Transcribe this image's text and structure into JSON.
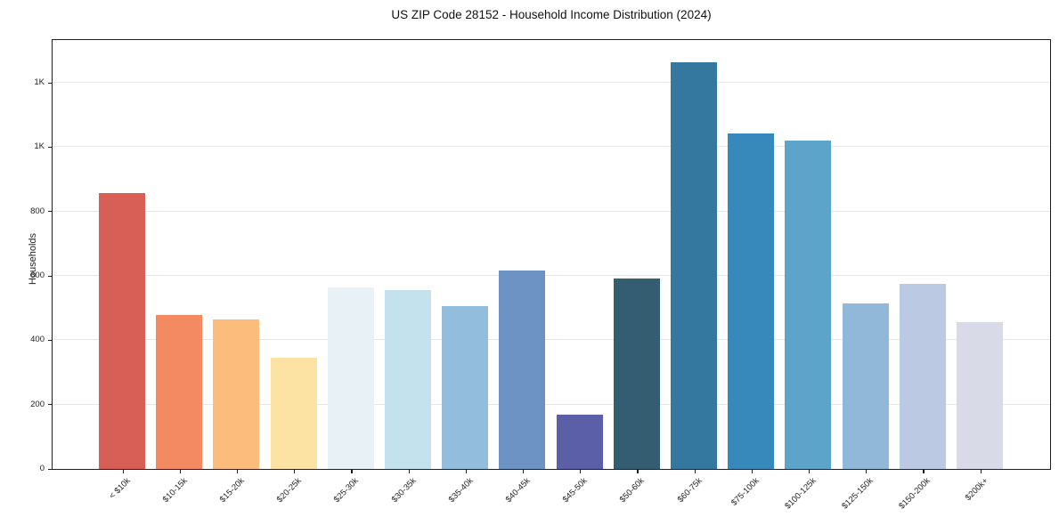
{
  "title": "US ZIP Code 28152 - Household Income Distribution (2024)",
  "chart_data": {
    "type": "bar",
    "title": "US ZIP Code 28152 - Household Income Distribution (2024)",
    "xlabel": "",
    "ylabel": "Households",
    "ylim": [
      0,
      1330
    ],
    "grid": true,
    "legend": "none",
    "categories": [
      "< $10k",
      "$10-15k",
      "$15-20k",
      "$20-25k",
      "$25-30k",
      "$30-35k",
      "$35-40k",
      "$40-45k",
      "$45-50k",
      "$50-60k",
      "$60-75k",
      "$75-100k",
      "$100-125k",
      "$125-150k",
      "$150-200k",
      "$200k+"
    ],
    "values": [
      858,
      478,
      464,
      345,
      563,
      557,
      506,
      616,
      170,
      591,
      1264,
      1042,
      1019,
      514,
      574,
      456
    ],
    "bar_colors": [
      "#d75f55",
      "#f48a62",
      "#fbbc7c",
      "#fce3a3",
      "#e7f1f6",
      "#c4e1ee",
      "#93bddd",
      "#6c93c4",
      "#5a5fa8",
      "#345d72",
      "#35789f",
      "#3789bc",
      "#5ca4c9",
      "#92b8d9",
      "#bbc9e2",
      "#d9dae8"
    ],
    "yticks": [
      {
        "value": 0,
        "label": "0"
      },
      {
        "value": 200,
        "label": "200"
      },
      {
        "value": 400,
        "label": "400"
      },
      {
        "value": 600,
        "label": "600"
      },
      {
        "value": 800,
        "label": "800"
      },
      {
        "value": 1000,
        "label": "1K"
      },
      {
        "value": 1200,
        "label": "1K"
      }
    ]
  },
  "colors": {
    "background": "#ffffff",
    "grid": "#e7e7e7",
    "axis": "#1f1f1f",
    "text": "#222222"
  }
}
